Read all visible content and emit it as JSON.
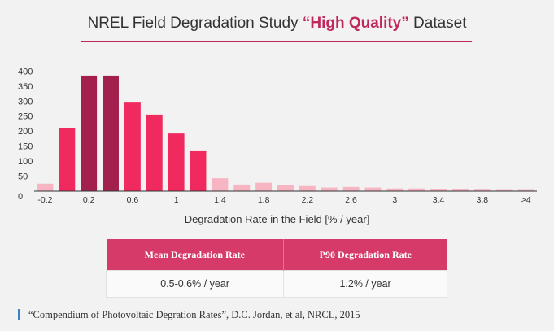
{
  "header": {
    "title_prefix": "NREL Field Degradation Study ",
    "title_highlight": "“High Quality”",
    "title_suffix": " Dataset"
  },
  "chart_data": {
    "type": "bar",
    "title": "NREL Field Degradation Study “High Quality” Dataset",
    "xlabel": "Degradation Rate in the Field [% / year]",
    "ylabel": "",
    "ylim": [
      0,
      420
    ],
    "y_ticks": [
      0,
      50,
      100,
      150,
      200,
      250,
      300,
      350,
      400
    ],
    "x_tick_labels": [
      "-0.2",
      "0.2",
      "0.6",
      "1",
      "1.4",
      "1.8",
      "2.2",
      "2.6",
      "3",
      "3.4",
      "3.8",
      ">4"
    ],
    "bins": [
      "-0.2",
      "0",
      "0.2",
      "0.4",
      "0.6",
      "0.8",
      "1",
      "1.2",
      "1.4",
      "1.6",
      "1.8",
      "2",
      "2.2",
      "2.4",
      "2.6",
      "2.8",
      "3",
      "3.2",
      "3.4",
      "3.6",
      "3.8",
      "4",
      ">4"
    ],
    "values": [
      25,
      210,
      385,
      385,
      295,
      255,
      192,
      133,
      43,
      22,
      28,
      20,
      17,
      12,
      14,
      12,
      9,
      9,
      8,
      6,
      5,
      4,
      4
    ],
    "colors": {
      "high": "#a3204e",
      "mid": "#f02a5e",
      "low": "#f7b5c4",
      "axis": "#333333"
    },
    "bar_tiers": [
      "low",
      "mid",
      "high",
      "high",
      "mid",
      "mid",
      "mid",
      "mid",
      "low",
      "low",
      "low",
      "low",
      "low",
      "low",
      "low",
      "low",
      "low",
      "low",
      "low",
      "low",
      "low",
      "low",
      "low"
    ]
  },
  "table": {
    "headers": [
      "Mean Degradation Rate",
      "P90 Degradation Rate"
    ],
    "values": [
      "0.5-0.6% / year",
      "1.2% / year"
    ]
  },
  "source": "“Compendium of Photovoltaic Degration Rates”, D.C. Jordan, et al, NRCL, 2015"
}
